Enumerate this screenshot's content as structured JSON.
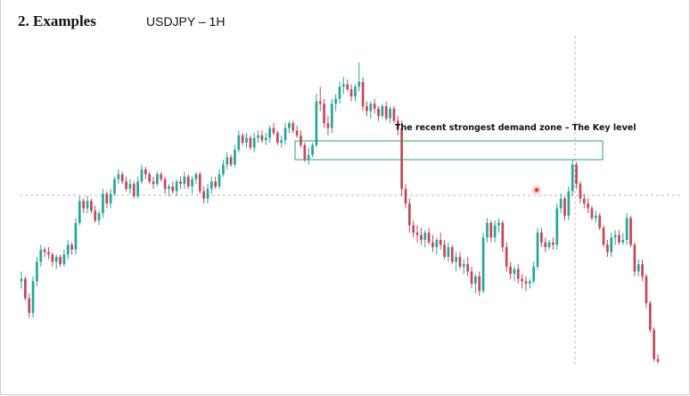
{
  "heading": "2. Examples",
  "symbol_label": "USDJPY – 1H",
  "colors": {
    "bull": "#26a69a",
    "bear": "#c2485a",
    "zone": "#2fa35a",
    "grid": "#b8b8b8",
    "marker": "#e53935"
  },
  "chart_data": {
    "type": "candlestick",
    "symbol": "USDJPY",
    "timeframe": "1H",
    "title": "",
    "xlabel": "",
    "ylabel": "",
    "grid": false,
    "annotations": [
      {
        "type": "zone",
        "label": "The recent strongest demand zone – The Key level",
        "low": 166.2,
        "high": 169.4
      },
      {
        "type": "crosshair"
      },
      {
        "type": "marker"
      }
    ],
    "candles": [
      [
        100,
        108,
        94,
        102
      ],
      [
        102,
        104,
        84,
        86
      ],
      [
        86,
        90,
        70,
        74
      ],
      [
        74,
        104,
        70,
        100
      ],
      [
        100,
        120,
        96,
        116
      ],
      [
        116,
        130,
        112,
        126
      ],
      [
        126,
        128,
        120,
        124
      ],
      [
        124,
        128,
        118,
        122
      ],
      [
        122,
        124,
        112,
        116
      ],
      [
        116,
        122,
        110,
        120
      ],
      [
        120,
        122,
        112,
        114
      ],
      [
        114,
        126,
        112,
        122
      ],
      [
        122,
        134,
        118,
        130
      ],
      [
        130,
        132,
        122,
        126
      ],
      [
        126,
        152,
        122,
        148
      ],
      [
        148,
        170,
        146,
        166
      ],
      [
        166,
        168,
        156,
        160
      ],
      [
        160,
        170,
        156,
        166
      ],
      [
        166,
        168,
        156,
        158
      ],
      [
        158,
        162,
        148,
        150
      ],
      [
        150,
        158,
        146,
        156
      ],
      [
        156,
        176,
        152,
        172
      ],
      [
        172,
        174,
        160,
        164
      ],
      [
        164,
        176,
        160,
        172
      ],
      [
        172,
        186,
        170,
        184
      ],
      [
        184,
        192,
        180,
        188
      ],
      [
        188,
        190,
        180,
        182
      ],
      [
        182,
        186,
        174,
        176
      ],
      [
        176,
        184,
        172,
        180
      ],
      [
        180,
        182,
        168,
        170
      ],
      [
        170,
        186,
        168,
        182
      ],
      [
        182,
        196,
        180,
        192
      ],
      [
        192,
        194,
        184,
        188
      ],
      [
        188,
        190,
        180,
        182
      ],
      [
        182,
        186,
        176,
        180
      ],
      [
        180,
        190,
        178,
        188
      ],
      [
        188,
        190,
        182,
        184
      ],
      [
        184,
        186,
        172,
        176
      ],
      [
        176,
        180,
        170,
        178
      ],
      [
        178,
        182,
        172,
        174
      ],
      [
        174,
        184,
        170,
        182
      ],
      [
        182,
        186,
        176,
        180
      ],
      [
        180,
        190,
        176,
        186
      ],
      [
        186,
        188,
        176,
        178
      ],
      [
        178,
        186,
        172,
        184
      ],
      [
        184,
        190,
        180,
        188
      ],
      [
        188,
        190,
        172,
        174
      ],
      [
        174,
        178,
        164,
        168
      ],
      [
        168,
        180,
        164,
        176
      ],
      [
        176,
        186,
        172,
        182
      ],
      [
        182,
        186,
        176,
        178
      ],
      [
        178,
        192,
        176,
        188
      ],
      [
        188,
        200,
        186,
        196
      ],
      [
        196,
        206,
        192,
        202
      ],
      [
        202,
        204,
        194,
        196
      ],
      [
        196,
        212,
        194,
        208
      ],
      [
        208,
        224,
        206,
        220
      ],
      [
        220,
        222,
        212,
        214
      ],
      [
        214,
        222,
        210,
        218
      ],
      [
        218,
        220,
        208,
        210
      ],
      [
        210,
        222,
        206,
        218
      ],
      [
        218,
        224,
        214,
        220
      ],
      [
        220,
        224,
        214,
        216
      ],
      [
        216,
        222,
        212,
        218
      ],
      [
        218,
        228,
        214,
        226
      ],
      [
        226,
        230,
        220,
        222
      ],
      [
        222,
        224,
        212,
        214
      ],
      [
        214,
        220,
        210,
        216
      ],
      [
        216,
        230,
        212,
        226
      ],
      [
        226,
        232,
        222,
        230
      ],
      [
        230,
        232,
        222,
        224
      ],
      [
        224,
        228,
        218,
        220
      ],
      [
        220,
        224,
        210,
        212
      ],
      [
        212,
        214,
        198,
        200
      ],
      [
        200,
        210,
        196,
        204
      ],
      [
        204,
        214,
        202,
        212
      ],
      [
        212,
        254,
        210,
        248
      ],
      [
        248,
        260,
        240,
        246
      ],
      [
        246,
        250,
        226,
        230
      ],
      [
        230,
        236,
        220,
        226
      ],
      [
        226,
        250,
        222,
        246
      ],
      [
        246,
        254,
        240,
        250
      ],
      [
        250,
        264,
        246,
        260
      ],
      [
        260,
        268,
        254,
        262
      ],
      [
        262,
        266,
        256,
        258
      ],
      [
        258,
        262,
        248,
        252
      ],
      [
        252,
        262,
        248,
        260
      ],
      [
        260,
        280,
        256,
        264
      ],
      [
        264,
        268,
        240,
        244
      ],
      [
        244,
        248,
        236,
        240
      ],
      [
        240,
        248,
        234,
        246
      ],
      [
        246,
        250,
        238,
        242
      ],
      [
        242,
        244,
        232,
        236
      ],
      [
        236,
        246,
        234,
        244
      ],
      [
        244,
        248,
        232,
        234
      ],
      [
        234,
        244,
        230,
        242
      ],
      [
        242,
        244,
        230,
        232
      ],
      [
        232,
        236,
        220,
        226
      ],
      [
        226,
        232,
        170,
        176
      ],
      [
        176,
        180,
        160,
        164
      ],
      [
        164,
        168,
        140,
        146
      ],
      [
        146,
        150,
        136,
        140
      ],
      [
        140,
        146,
        132,
        138
      ],
      [
        138,
        144,
        130,
        134
      ],
      [
        134,
        142,
        128,
        140
      ],
      [
        140,
        144,
        130,
        132
      ],
      [
        132,
        138,
        124,
        128
      ],
      [
        128,
        136,
        122,
        134
      ],
      [
        134,
        140,
        126,
        130
      ],
      [
        130,
        134,
        118,
        120
      ],
      [
        120,
        132,
        116,
        128
      ],
      [
        128,
        130,
        114,
        116
      ],
      [
        116,
        124,
        108,
        120
      ],
      [
        120,
        124,
        110,
        112
      ],
      [
        112,
        118,
        106,
        114
      ],
      [
        114,
        120,
        104,
        108
      ],
      [
        108,
        112,
        94,
        98
      ],
      [
        98,
        106,
        90,
        104
      ],
      [
        104,
        108,
        88,
        92
      ],
      [
        92,
        140,
        90,
        136
      ],
      [
        136,
        152,
        132,
        148
      ],
      [
        148,
        150,
        132,
        136
      ],
      [
        136,
        150,
        132,
        146
      ],
      [
        146,
        152,
        140,
        148
      ],
      [
        148,
        150,
        124,
        128
      ],
      [
        128,
        132,
        108,
        112
      ],
      [
        112,
        116,
        102,
        106
      ],
      [
        106,
        112,
        100,
        110
      ],
      [
        110,
        114,
        98,
        102
      ],
      [
        102,
        106,
        94,
        100
      ],
      [
        100,
        104,
        92,
        98
      ],
      [
        98,
        102,
        94,
        100
      ],
      [
        100,
        116,
        98,
        112
      ],
      [
        112,
        144,
        110,
        140
      ],
      [
        140,
        144,
        128,
        132
      ],
      [
        132,
        136,
        124,
        128
      ],
      [
        128,
        134,
        126,
        132
      ],
      [
        132,
        136,
        126,
        130
      ],
      [
        130,
        164,
        126,
        160
      ],
      [
        160,
        172,
        156,
        168
      ],
      [
        168,
        170,
        150,
        154
      ],
      [
        154,
        178,
        150,
        174
      ],
      [
        174,
        200,
        170,
        196
      ],
      [
        196,
        198,
        176,
        180
      ],
      [
        180,
        182,
        164,
        168
      ],
      [
        168,
        172,
        160,
        164
      ],
      [
        164,
        168,
        156,
        160
      ],
      [
        160,
        162,
        150,
        152
      ],
      [
        152,
        158,
        148,
        154
      ],
      [
        154,
        156,
        142,
        144
      ],
      [
        144,
        146,
        128,
        130
      ],
      [
        130,
        134,
        120,
        124
      ],
      [
        124,
        140,
        120,
        136
      ],
      [
        136,
        142,
        130,
        138
      ],
      [
        138,
        142,
        130,
        132
      ],
      [
        132,
        140,
        130,
        134
      ],
      [
        134,
        156,
        130,
        152
      ],
      [
        152,
        154,
        128,
        130
      ],
      [
        130,
        132,
        104,
        108
      ],
      [
        108,
        118,
        104,
        114
      ],
      [
        114,
        118,
        100,
        104
      ],
      [
        104,
        106,
        78,
        82
      ],
      [
        82,
        84,
        58,
        60
      ],
      [
        60,
        62,
        34,
        36
      ],
      [
        36,
        40,
        32,
        34
      ]
    ]
  }
}
